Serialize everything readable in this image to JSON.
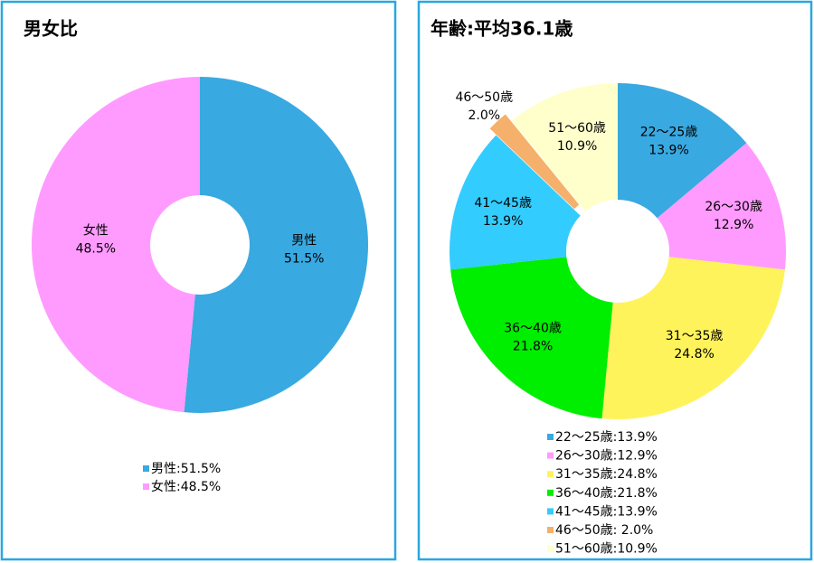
{
  "chart_data": [
    {
      "type": "donut",
      "title": "男女比",
      "categories": [
        "男性",
        "女性"
      ],
      "values": [
        51.5,
        48.5
      ],
      "value_labels": [
        "51.5%",
        "48.5%"
      ],
      "colors": [
        "#39a9e1",
        "#ff9bff"
      ],
      "legend_labels": [
        "男性:51.5%",
        "女性:48.5%"
      ]
    },
    {
      "type": "donut",
      "title": "年齢:平均36.1歳",
      "categories": [
        "22〜25歳",
        "26〜30歳",
        "31〜35歳",
        "36〜40歳",
        "41〜45歳",
        "46〜50歳",
        "51〜60歳"
      ],
      "values": [
        13.9,
        12.9,
        24.8,
        21.8,
        13.9,
        2.0,
        10.9
      ],
      "value_labels": [
        "13.9%",
        "12.9%",
        "24.8%",
        "21.8%",
        "13.9%",
        "2.0%",
        "10.9%"
      ],
      "colors": [
        "#39a9e1",
        "#ff9bff",
        "#fff35c",
        "#00ee00",
        "#33ccff",
        "#f5b06b",
        "#ffffcc"
      ],
      "legend_labels": [
        "22〜25歳:13.9%",
        "26〜30歳:12.9%",
        "31〜35歳:24.8%",
        "36〜40歳:21.8%",
        "41〜45歳:13.9%",
        "46〜50歳:  2.0%",
        "51〜60歳:10.9%"
      ]
    }
  ]
}
